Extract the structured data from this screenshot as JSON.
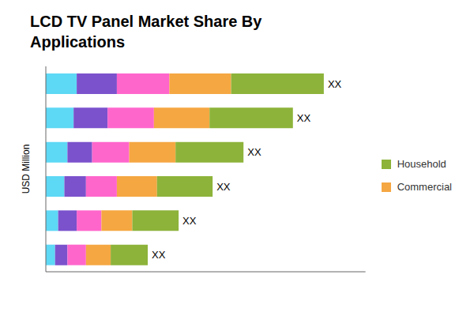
{
  "chart_data": {
    "type": "bar",
    "title": "LCD TV Panel Market Share By\nApplications",
    "ylabel": "USD Million",
    "orientation": "horizontal",
    "stacked": true,
    "grid": false,
    "tick_labels": false,
    "legend": "right",
    "categories": [
      null,
      null,
      null,
      null,
      null,
      null
    ],
    "xlim": [
      0,
      103.5
    ],
    "xticks": [],
    "series": [
      {
        "color": "#5DD8F5",
        "values": [
          10,
          9,
          7,
          6,
          4,
          3
        ]
      },
      {
        "color": "#7B52CC",
        "values": [
          13,
          11,
          8,
          7,
          6,
          4
        ]
      },
      {
        "color": "#FF66CC",
        "values": [
          17,
          15,
          12,
          10,
          8,
          6
        ]
      },
      {
        "name": "Commercial",
        "color": "#F5A742",
        "values": [
          20,
          18,
          15,
          13,
          10,
          8
        ]
      },
      {
        "name": "Household",
        "color": "#8DB33A",
        "values": [
          30,
          27,
          22,
          18,
          15,
          12
        ]
      }
    ],
    "annotations": [
      "XX",
      "XX",
      "XX",
      "XX",
      "XX",
      "XX"
    ]
  }
}
